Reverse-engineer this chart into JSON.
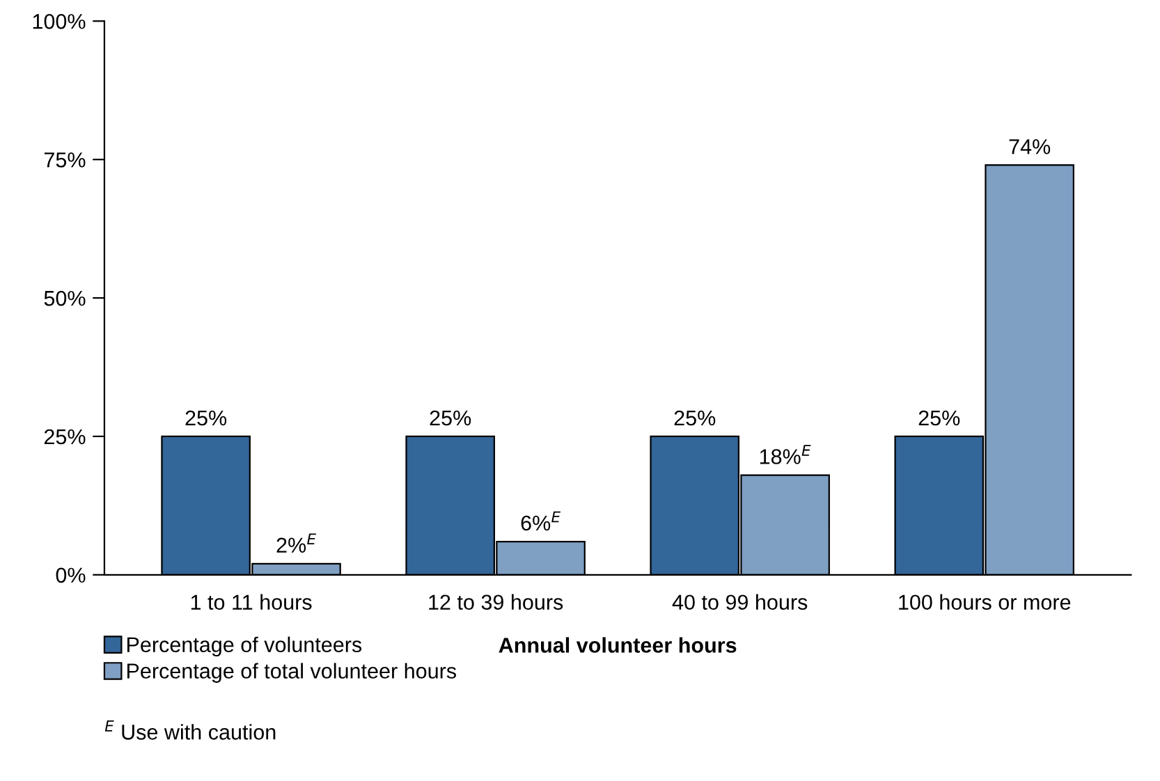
{
  "chart_data": {
    "type": "bar",
    "xlabel": "Annual volunteer hours",
    "categories": [
      "1 to 11 hours",
      "12 to 39 hours",
      "40 to 99 hours",
      "100 hours or more"
    ],
    "series": [
      {
        "name": "Percentage of volunteers",
        "color": "#336699",
        "values": [
          25,
          25,
          25,
          25
        ],
        "value_labels": [
          "25%",
          "25%",
          "25%",
          "25%"
        ]
      },
      {
        "name": "Percentage of total volunteer hours",
        "color": "#7f9fc3",
        "values": [
          2,
          6,
          18,
          74
        ],
        "value_labels": [
          "2%$^{E}$",
          "6%$^{E}$",
          "18%$^{E}$",
          "74%"
        ]
      }
    ],
    "ylim": [
      0,
      100
    ],
    "yticks": [
      {
        "value": 0,
        "label": "0%"
      },
      {
        "value": 25,
        "label": "25%"
      },
      {
        "value": 50,
        "label": "50%"
      },
      {
        "value": 75,
        "label": "75%"
      },
      {
        "value": 100,
        "label": "100%"
      }
    ],
    "legend": "bottom left",
    "annotations": [
      "$^{E}$ Use with caution"
    ]
  }
}
